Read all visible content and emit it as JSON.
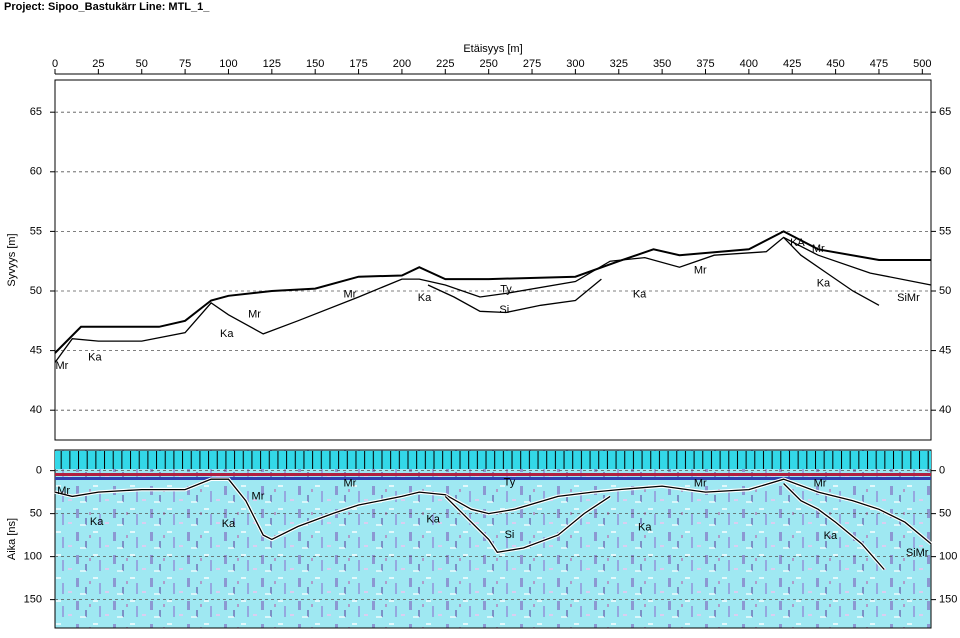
{
  "header": {
    "title": "Project: Sipoo_Bastukärr  Line: MTL_1_"
  },
  "chart_data": [
    {
      "type": "line",
      "xlabel": "Etäisyys [m]",
      "ylabel": "Syvyys [m]",
      "xlim": [
        0,
        505
      ],
      "xticks": [
        0,
        25,
        50,
        75,
        100,
        125,
        150,
        175,
        200,
        225,
        250,
        275,
        300,
        325,
        350,
        375,
        400,
        425,
        450,
        475,
        500
      ],
      "ylim": [
        37.5,
        67.7
      ],
      "yticks": [
        40,
        45,
        50,
        55,
        60,
        65
      ],
      "grid": true,
      "series": [
        {
          "color": "#000000",
          "x": [
            0,
            15,
            60,
            75,
            90,
            100,
            125,
            150,
            175,
            200,
            210,
            225,
            250,
            300,
            325,
            345,
            360,
            400,
            420,
            440,
            475,
            505
          ],
          "values": [
            44.8,
            47,
            47,
            47.5,
            49.2,
            49.6,
            50,
            50.2,
            51.2,
            51.3,
            52,
            51,
            51,
            51.2,
            52.5,
            53.5,
            53,
            53.5,
            55,
            53.5,
            52.6,
            52.6
          ]
        },
        {
          "color": "#000000",
          "x": [
            0,
            10,
            25,
            50,
            75,
            90,
            100,
            120,
            140,
            175,
            200,
            210,
            225,
            245,
            260,
            300,
            320,
            340,
            360,
            380,
            410,
            420,
            440,
            470,
            505
          ],
          "values": [
            44,
            46,
            45.8,
            45.8,
            46.5,
            49,
            48,
            46.4,
            47.5,
            49.5,
            51,
            51,
            50.5,
            49.5,
            49.8,
            50.8,
            52.5,
            52.8,
            52,
            53,
            53.3,
            54.5,
            53,
            51.5,
            50.5
          ]
        },
        {
          "color": "#000000",
          "x": [
            215,
            230,
            245,
            260,
            280,
            300,
            315
          ],
          "values": [
            50.5,
            49.5,
            48.3,
            48.2,
            48.8,
            49.2,
            51
          ]
        },
        {
          "color": "#000000",
          "x": [
            420,
            430,
            445,
            460,
            475
          ],
          "values": [
            54.5,
            53,
            51.5,
            50,
            48.8
          ]
        }
      ],
      "annotations": [
        {
          "text": "Mr",
          "x": 4,
          "y": 43.7
        },
        {
          "text": "Ka",
          "x": 23,
          "y": 44.4
        },
        {
          "text": "Mr",
          "x": 115,
          "y": 48
        },
        {
          "text": "Ka",
          "x": 99,
          "y": 46.4
        },
        {
          "text": "Mr",
          "x": 170,
          "y": 49.7
        },
        {
          "text": "Ka",
          "x": 213,
          "y": 49.4
        },
        {
          "text": "Ty",
          "x": 260,
          "y": 50.1
        },
        {
          "text": "Si",
          "x": 259,
          "y": 48.4
        },
        {
          "text": "Ka",
          "x": 337,
          "y": 49.7
        },
        {
          "text": "Mr",
          "x": 372,
          "y": 51.7
        },
        {
          "text": "KA",
          "x": 428,
          "y": 54
        },
        {
          "text": "Mr",
          "x": 440,
          "y": 53.5
        },
        {
          "text": "Ka",
          "x": 443,
          "y": 50.6
        },
        {
          "text": "SiMr",
          "x": 492,
          "y": 49.4
        }
      ]
    },
    {
      "type": "line",
      "ylabel": "Aika [ns]",
      "xlim": [
        0,
        505
      ],
      "ylim": [
        183,
        -24
      ],
      "yticks": [
        0,
        50,
        100,
        150
      ],
      "grid": true,
      "series": [
        {
          "color": "#000000",
          "x": [
            0,
            10,
            25,
            50,
            75,
            90,
            100,
            110,
            120,
            125,
            140,
            160,
            175,
            200,
            210,
            225,
            240,
            250,
            265,
            290,
            310,
            325,
            350,
            375,
            400,
            420,
            440,
            460,
            475,
            490,
            505
          ],
          "values": [
            25,
            30,
            25,
            22,
            22,
            10,
            10,
            35,
            75,
            80,
            65,
            50,
            40,
            30,
            25,
            28,
            45,
            50,
            45,
            30,
            25,
            22,
            18,
            25,
            22,
            10,
            25,
            35,
            45,
            60,
            85
          ]
        },
        {
          "color": "#000000",
          "x": [
            225,
            240,
            250,
            255,
            270,
            290,
            305,
            320
          ],
          "values": [
            30,
            60,
            80,
            95,
            90,
            75,
            50,
            30
          ]
        },
        {
          "color": "#000000",
          "x": [
            420,
            430,
            440,
            450,
            465,
            478
          ],
          "values": [
            15,
            35,
            45,
            60,
            85,
            115
          ]
        }
      ],
      "annotations": [
        {
          "text": "Mr",
          "x": 5,
          "y": 24
        },
        {
          "text": "Ka",
          "x": 24,
          "y": 60
        },
        {
          "text": "Mr",
          "x": 117,
          "y": 30
        },
        {
          "text": "Ka",
          "x": 100,
          "y": 62
        },
        {
          "text": "Mr",
          "x": 170,
          "y": 15
        },
        {
          "text": "Ty",
          "x": 262,
          "y": 14
        },
        {
          "text": "Ka",
          "x": 218,
          "y": 57
        },
        {
          "text": "Si",
          "x": 262,
          "y": 75
        },
        {
          "text": "Ka",
          "x": 340,
          "y": 66
        },
        {
          "text": "Mr",
          "x": 372,
          "y": 15
        },
        {
          "text": "Mr",
          "x": 441,
          "y": 15
        },
        {
          "text": "Ka",
          "x": 447,
          "y": 76
        },
        {
          "text": "SiMr",
          "x": 497,
          "y": 96
        }
      ]
    }
  ]
}
